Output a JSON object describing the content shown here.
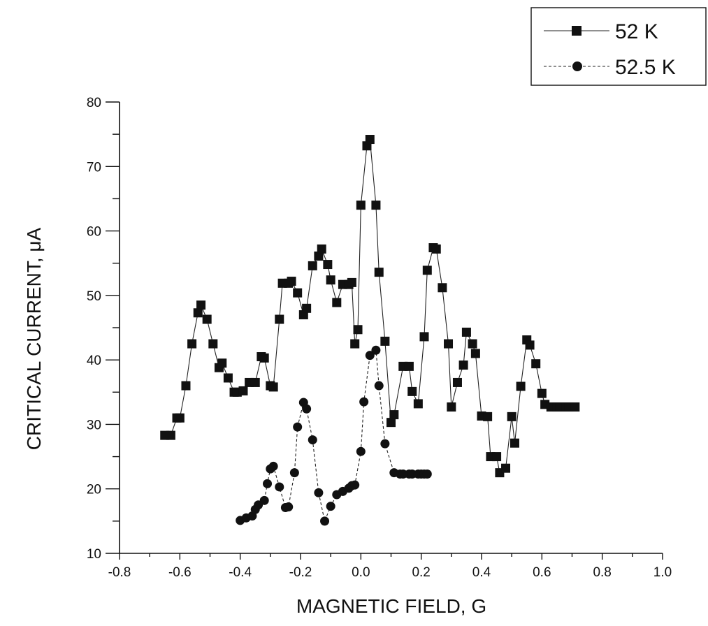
{
  "chart_data": {
    "type": "scatter",
    "xlabel": "MAGNETIC FIELD, G",
    "ylabel": "CRITICAL CURRENT, μA",
    "xlim": [
      -0.8,
      1.0
    ],
    "ylim": [
      10,
      80
    ],
    "x_ticks": [
      "-0.8",
      "-0.6",
      "-0.4",
      "-0.2",
      "0.0",
      "0.2",
      "0.4",
      "0.6",
      "0.8",
      "1.0"
    ],
    "y_ticks": [
      "10",
      "20",
      "30",
      "40",
      "50",
      "60",
      "70",
      "80"
    ],
    "legend_position": "top-right",
    "grid": false,
    "series": [
      {
        "name": "52 K",
        "marker": "square",
        "x": [
          -0.65,
          -0.63,
          -0.61,
          -0.6,
          -0.58,
          -0.56,
          -0.54,
          -0.53,
          -0.51,
          -0.49,
          -0.47,
          -0.46,
          -0.44,
          -0.42,
          -0.41,
          -0.39,
          -0.37,
          -0.35,
          -0.33,
          -0.32,
          -0.3,
          -0.29,
          -0.27,
          -0.26,
          -0.24,
          -0.23,
          -0.21,
          -0.19,
          -0.18,
          -0.16,
          -0.14,
          -0.13,
          -0.11,
          -0.1,
          -0.08,
          -0.06,
          -0.04,
          -0.03,
          -0.02,
          -0.01,
          0.0,
          0.02,
          0.03,
          0.05,
          0.06,
          0.08,
          0.1,
          0.11,
          0.14,
          0.16,
          0.17,
          0.19,
          0.21,
          0.22,
          0.24,
          0.25,
          0.27,
          0.29,
          0.3,
          0.32,
          0.34,
          0.35,
          0.37,
          0.38,
          0.4,
          0.42,
          0.43,
          0.45,
          0.46,
          0.48,
          0.5,
          0.51,
          0.53,
          0.55,
          0.56,
          0.58,
          0.6,
          0.61,
          0.63,
          0.65,
          0.66,
          0.68,
          0.69,
          0.71
        ],
        "y": [
          28.3,
          28.3,
          31.0,
          31.0,
          36.0,
          42.5,
          47.3,
          48.5,
          46.3,
          42.5,
          38.8,
          39.5,
          37.2,
          35.0,
          35.0,
          35.2,
          36.5,
          36.5,
          40.5,
          40.3,
          36.0,
          35.8,
          46.3,
          51.9,
          51.9,
          52.2,
          50.4,
          47.0,
          48.0,
          54.6,
          56.1,
          57.2,
          54.8,
          52.4,
          48.9,
          51.7,
          51.7,
          52.0,
          42.5,
          44.7,
          64.0,
          73.2,
          74.2,
          64.0,
          53.6,
          42.9,
          30.3,
          31.5,
          39.0,
          39.0,
          35.1,
          33.2,
          43.6,
          53.9,
          57.4,
          57.2,
          51.2,
          42.5,
          32.7,
          36.5,
          39.2,
          44.3,
          42.5,
          41.0,
          31.3,
          31.2,
          25.0,
          25.0,
          22.5,
          23.2,
          31.2,
          27.1,
          35.9,
          43.1,
          42.3,
          39.4,
          34.8,
          33.1,
          32.7,
          32.7,
          32.7,
          32.7,
          32.7,
          32.7
        ]
      },
      {
        "name": "52.5 K",
        "marker": "circle",
        "x": [
          -0.4,
          -0.38,
          -0.36,
          -0.35,
          -0.34,
          -0.32,
          -0.31,
          -0.3,
          -0.29,
          -0.27,
          -0.25,
          -0.24,
          -0.22,
          -0.21,
          -0.19,
          -0.18,
          -0.16,
          -0.14,
          -0.12,
          -0.1,
          -0.08,
          -0.06,
          -0.04,
          -0.03,
          -0.02,
          0.0,
          0.01,
          0.03,
          0.05,
          0.06,
          0.08,
          0.11,
          0.13,
          0.14,
          0.16,
          0.17,
          0.19,
          0.2,
          0.21,
          0.22
        ],
        "y": [
          15.1,
          15.5,
          15.8,
          16.8,
          17.5,
          18.2,
          20.8,
          23.1,
          23.5,
          20.3,
          17.1,
          17.2,
          22.5,
          29.6,
          33.4,
          32.4,
          27.6,
          19.4,
          15.0,
          17.3,
          19.1,
          19.6,
          20.1,
          20.5,
          20.6,
          25.8,
          33.5,
          40.7,
          41.5,
          36.0,
          27.0,
          22.5,
          22.3,
          22.3,
          22.3,
          22.3,
          22.3,
          22.3,
          22.3,
          22.3
        ]
      }
    ]
  }
}
